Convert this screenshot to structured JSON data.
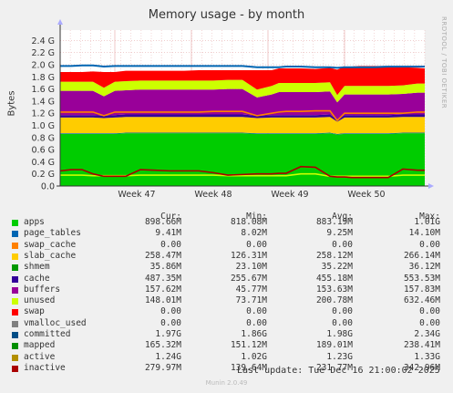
{
  "chart_data": {
    "type": "area",
    "title": "Memory usage - by month",
    "ylabel": "Bytes",
    "watermark": "RRDTOOL / TOBI OETIKER",
    "ylim": [
      0,
      2.5
    ],
    "y_ticks": [
      "0.0",
      "0.2 G",
      "0.4 G",
      "0.6 G",
      "0.8 G",
      "1.0 G",
      "1.2 G",
      "1.4 G",
      "1.6 G",
      "1.8 G",
      "2.0 G",
      "2.2 G",
      "2.4 G"
    ],
    "x_labels": [
      "Week 47",
      "Week 48",
      "Week 49",
      "Week 50"
    ],
    "grid": true,
    "x": [
      0,
      0.03,
      0.06,
      0.09,
      0.12,
      0.15,
      0.18,
      0.22,
      0.26,
      0.3,
      0.34,
      0.38,
      0.42,
      0.46,
      0.5,
      0.54,
      0.58,
      0.6,
      0.62,
      0.66,
      0.7,
      0.74,
      0.76,
      0.78,
      0.8,
      0.82,
      0.86,
      0.9,
      0.94,
      0.98,
      1.0
    ],
    "series": [
      {
        "name": "apps",
        "color": "#00cc00",
        "values": [
          0.86,
          0.86,
          0.86,
          0.86,
          0.86,
          0.86,
          0.87,
          0.87,
          0.87,
          0.87,
          0.87,
          0.87,
          0.87,
          0.87,
          0.87,
          0.86,
          0.86,
          0.86,
          0.86,
          0.86,
          0.86,
          0.87,
          0.85,
          0.86,
          0.86,
          0.86,
          0.86,
          0.86,
          0.87,
          0.87,
          0.87
        ]
      },
      {
        "name": "page_tables",
        "color": "#0066b3",
        "values": [
          0.01,
          0.01,
          0.01,
          0.01,
          0.01,
          0.01,
          0.01,
          0.01,
          0.01,
          0.01,
          0.01,
          0.01,
          0.01,
          0.01,
          0.01,
          0.01,
          0.01,
          0.01,
          0.01,
          0.01,
          0.01,
          0.01,
          0.01,
          0.01,
          0.01,
          0.01,
          0.01,
          0.01,
          0.01,
          0.01,
          0.01
        ]
      },
      {
        "name": "swap_cache",
        "color": "#ff8000",
        "values": [
          0,
          0,
          0,
          0,
          0,
          0,
          0,
          0,
          0,
          0,
          0,
          0,
          0,
          0,
          0,
          0,
          0,
          0,
          0,
          0,
          0,
          0,
          0,
          0,
          0,
          0,
          0,
          0,
          0,
          0,
          0
        ]
      },
      {
        "name": "slab_cache",
        "color": "#ffcc00",
        "values": [
          0.26,
          0.26,
          0.26,
          0.26,
          0.25,
          0.26,
          0.26,
          0.26,
          0.26,
          0.26,
          0.26,
          0.26,
          0.26,
          0.26,
          0.26,
          0.25,
          0.26,
          0.26,
          0.26,
          0.26,
          0.26,
          0.26,
          0.2,
          0.26,
          0.26,
          0.26,
          0.26,
          0.26,
          0.26,
          0.26,
          0.26
        ]
      },
      {
        "name": "shmem",
        "color": "#330099",
        "values": [
          0.04,
          0.04,
          0.04,
          0.04,
          0.04,
          0.04,
          0.04,
          0.04,
          0.04,
          0.04,
          0.04,
          0.04,
          0.04,
          0.04,
          0.04,
          0.04,
          0.04,
          0.04,
          0.04,
          0.04,
          0.04,
          0.04,
          0.04,
          0.04,
          0.04,
          0.04,
          0.04,
          0.04,
          0.04,
          0.04,
          0.04
        ]
      },
      {
        "name": "cache",
        "color": "#990099",
        "values": [
          0.4,
          0.4,
          0.4,
          0.4,
          0.32,
          0.4,
          0.4,
          0.41,
          0.41,
          0.41,
          0.41,
          0.41,
          0.41,
          0.42,
          0.42,
          0.3,
          0.34,
          0.38,
          0.38,
          0.38,
          0.38,
          0.38,
          0.28,
          0.34,
          0.34,
          0.34,
          0.34,
          0.34,
          0.34,
          0.36,
          0.36
        ]
      },
      {
        "name": "buffers",
        "color": "#ccff00",
        "values": [
          0.15,
          0.15,
          0.15,
          0.15,
          0.14,
          0.15,
          0.15,
          0.15,
          0.15,
          0.15,
          0.15,
          0.15,
          0.15,
          0.15,
          0.15,
          0.13,
          0.14,
          0.15,
          0.15,
          0.15,
          0.15,
          0.15,
          0.12,
          0.14,
          0.14,
          0.14,
          0.14,
          0.14,
          0.14,
          0.15,
          0.15
        ]
      },
      {
        "name": "unused",
        "color": "#ff0000",
        "values": [
          0.16,
          0.16,
          0.16,
          0.17,
          0.26,
          0.16,
          0.17,
          0.16,
          0.16,
          0.16,
          0.16,
          0.17,
          0.17,
          0.16,
          0.16,
          0.32,
          0.26,
          0.24,
          0.24,
          0.24,
          0.23,
          0.24,
          0.42,
          0.32,
          0.32,
          0.33,
          0.33,
          0.33,
          0.3,
          0.26,
          0.25
        ]
      }
    ],
    "committed": {
      "name": "committed",
      "color": "#0066b3",
      "values": [
        1.98,
        1.98,
        1.99,
        1.99,
        1.97,
        1.98,
        1.98,
        1.98,
        1.98,
        1.98,
        1.98,
        1.98,
        1.98,
        1.98,
        1.98,
        1.96,
        1.96,
        1.96,
        1.97,
        1.97,
        1.96,
        1.96,
        1.95,
        1.96,
        1.96,
        1.96,
        1.96,
        1.97,
        1.97,
        1.97,
        1.97
      ]
    },
    "active": {
      "name": "active",
      "color": "#ff8000",
      "values": [
        1.22,
        1.22,
        1.22,
        1.22,
        1.16,
        1.22,
        1.22,
        1.22,
        1.22,
        1.22,
        1.22,
        1.22,
        1.23,
        1.23,
        1.23,
        1.16,
        1.2,
        1.22,
        1.23,
        1.23,
        1.24,
        1.24,
        1.08,
        1.2,
        1.2,
        1.2,
        1.2,
        1.2,
        1.2,
        1.22,
        1.22
      ]
    },
    "inactive": {
      "name": "inactive",
      "color": "#aa0000",
      "values": [
        0.25,
        0.27,
        0.27,
        0.2,
        0.16,
        0.16,
        0.16,
        0.27,
        0.26,
        0.25,
        0.25,
        0.25,
        0.22,
        0.18,
        0.19,
        0.2,
        0.2,
        0.21,
        0.21,
        0.32,
        0.31,
        0.16,
        0.15,
        0.15,
        0.14,
        0.14,
        0.14,
        0.14,
        0.28,
        0.26,
        0.26
      ]
    },
    "mapped": {
      "name": "mapped",
      "color": "#ccff00",
      "values": [
        0.18,
        0.18,
        0.18,
        0.17,
        0.17,
        0.17,
        0.17,
        0.18,
        0.18,
        0.18,
        0.18,
        0.18,
        0.18,
        0.17,
        0.17,
        0.17,
        0.17,
        0.17,
        0.17,
        0.2,
        0.2,
        0.16,
        0.16,
        0.16,
        0.16,
        0.16,
        0.16,
        0.16,
        0.18,
        0.18,
        0.18
      ]
    }
  },
  "legend": {
    "headers": [
      "Cur:",
      "Min:",
      "Avg:",
      "Max:"
    ],
    "rows": [
      {
        "name": "apps",
        "color": "#00cc00",
        "cur": "898.66M",
        "min": "818.08M",
        "avg": "883.19M",
        "max": "1.01G"
      },
      {
        "name": "page_tables",
        "color": "#0066b3",
        "cur": "9.41M",
        "min": "8.02M",
        "avg": "9.25M",
        "max": "14.10M"
      },
      {
        "name": "swap_cache",
        "color": "#ff8000",
        "cur": "0.00",
        "min": "0.00",
        "avg": "0.00",
        "max": "0.00"
      },
      {
        "name": "slab_cache",
        "color": "#ffcc00",
        "cur": "258.47M",
        "min": "126.31M",
        "avg": "258.12M",
        "max": "266.14M"
      },
      {
        "name": "shmem",
        "color": "#009900",
        "cur": "35.86M",
        "min": "23.10M",
        "avg": "35.22M",
        "max": "36.12M"
      },
      {
        "name": "cache",
        "color": "#330099",
        "cur": "487.35M",
        "min": "255.67M",
        "avg": "455.18M",
        "max": "553.53M"
      },
      {
        "name": "buffers",
        "color": "#990099",
        "cur": "157.62M",
        "min": "45.77M",
        "avg": "153.63M",
        "max": "157.83M"
      },
      {
        "name": "unused",
        "color": "#ccff00",
        "cur": "148.01M",
        "min": "73.71M",
        "avg": "200.78M",
        "max": "632.46M"
      },
      {
        "name": "swap",
        "color": "#ff0000",
        "cur": "0.00",
        "min": "0.00",
        "avg": "0.00",
        "max": "0.00"
      },
      {
        "name": "vmalloc_used",
        "color": "#808080",
        "cur": "0.00",
        "min": "0.00",
        "avg": "0.00",
        "max": "0.00"
      },
      {
        "name": "committed",
        "color": "#004d86",
        "cur": "1.97G",
        "min": "1.86G",
        "avg": "1.98G",
        "max": "2.34G"
      },
      {
        "name": "mapped",
        "color": "#008f00",
        "cur": "165.32M",
        "min": "151.12M",
        "avg": "189.01M",
        "max": "238.41M"
      },
      {
        "name": "active",
        "color": "#b38f00",
        "cur": "1.24G",
        "min": "1.02G",
        "avg": "1.23G",
        "max": "1.33G"
      },
      {
        "name": "inactive",
        "color": "#aa0000",
        "cur": "279.97M",
        "min": "139.64M",
        "avg": "231.77M",
        "max": "342.96M"
      }
    ]
  },
  "footer": "Last update: Tue Dec 16 21:00:02 2025",
  "munin": "Munin 2.0.49"
}
